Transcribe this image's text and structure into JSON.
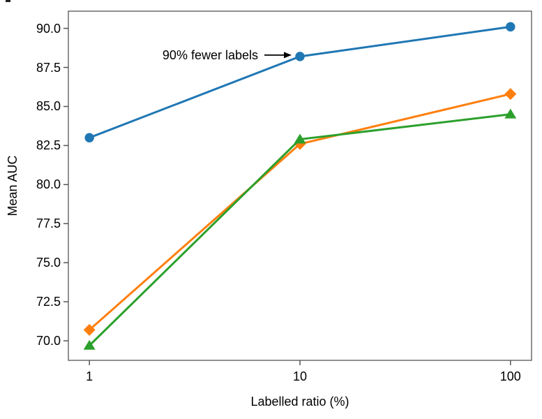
{
  "chart_data": {
    "type": "line",
    "title": "",
    "xlabel": "Labelled ratio (%)",
    "ylabel": "Mean AUC",
    "x_scale": "log",
    "x": [
      1,
      10,
      100
    ],
    "x_tick_labels": [
      "1",
      "10",
      "100"
    ],
    "y_ticks": [
      70.0,
      72.5,
      75.0,
      77.5,
      80.0,
      82.5,
      85.0,
      87.5,
      90.0
    ],
    "y_tick_labels": [
      "70.0",
      "72.5",
      "75.0",
      "77.5",
      "80.0",
      "82.5",
      "85.0",
      "87.5",
      "90.0"
    ],
    "xlim_log10": [
      -0.1,
      2.1
    ],
    "ylim": [
      68.75,
      91.1
    ],
    "grid": false,
    "legend": "none",
    "series": [
      {
        "name": "blue-circles",
        "marker": "circle",
        "color": "#1f77b4",
        "values": [
          83.0,
          88.2,
          90.1
        ]
      },
      {
        "name": "orange-diamonds",
        "marker": "diamond",
        "color": "#ff7f0e",
        "values": [
          70.7,
          82.6,
          85.8
        ]
      },
      {
        "name": "green-triangles",
        "marker": "triangle",
        "color": "#2ca02c",
        "values": [
          69.7,
          82.9,
          84.5
        ]
      }
    ],
    "annotation": {
      "text": "90% fewer labels",
      "target_x": 10,
      "target_y": 88.2,
      "color": "#000000"
    }
  },
  "style": {
    "axis_color": "#6b6b6b",
    "tick_color": "#555555",
    "text_color": "#000000",
    "background": "#ffffff"
  }
}
